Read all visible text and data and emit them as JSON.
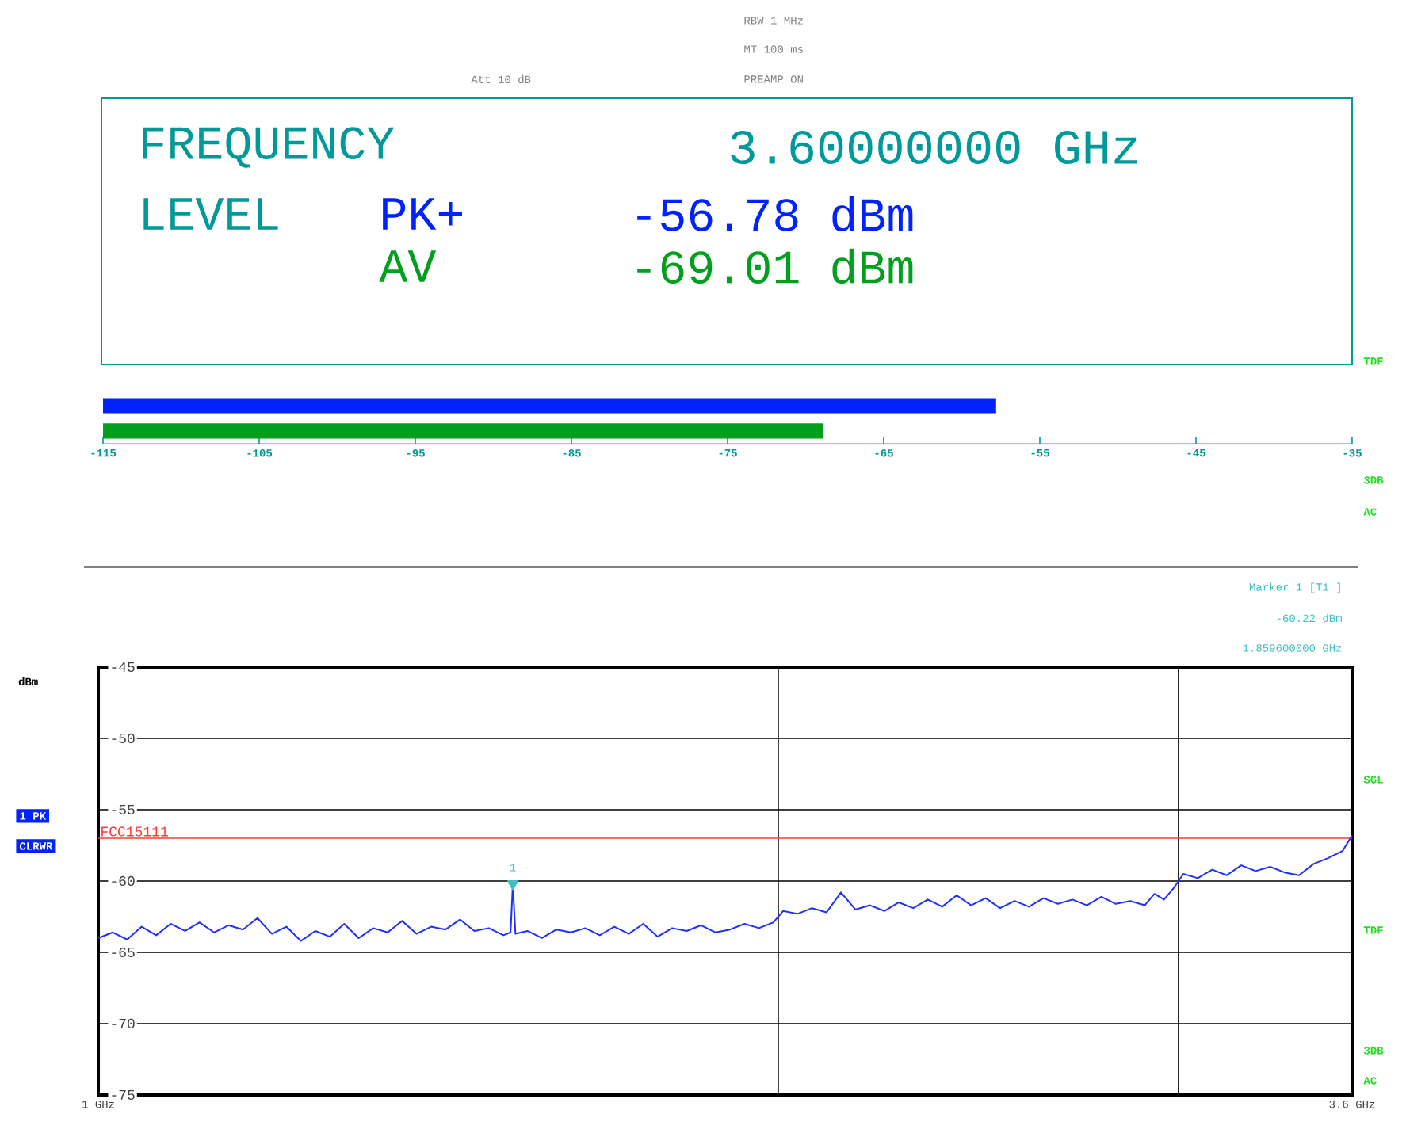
{
  "chart_data": [
    {
      "type": "bar",
      "orientation": "horizontal",
      "categories": [
        null,
        null
      ],
      "base": [
        -115,
        -115
      ],
      "values": [
        57.2,
        46.1
      ],
      "colors": [
        "#0022ff",
        "#00a01e"
      ],
      "xlim": [
        -115,
        -35
      ],
      "xticks": [
        -115,
        -105,
        -95,
        -85,
        -75,
        -65,
        -55,
        -45,
        -35
      ],
      "annotations": [
        "Att 10 dB",
        "RBW 1 MHz",
        "MT 100 ms",
        "PREAMP ON",
        "FREQUENCY",
        "3.60000000 GHz",
        "LEVEL",
        "PK+",
        "-56.78 dBm",
        "AV",
        "-69.01 dBm",
        "TDF",
        "3DB",
        "AC"
      ]
    },
    {
      "type": "line",
      "ylabel": "dBm",
      "xlim": [
        1,
        3.6
      ],
      "xticks": [
        {
          "value": 1,
          "label": "1 GHz"
        },
        {
          "value": 3.6,
          "label": "3.6 GHz"
        }
      ],
      "ylim": [
        -75,
        -45
      ],
      "yticks": [
        -45,
        -50,
        -55,
        -60,
        -65,
        -70,
        -75
      ],
      "grid": "y",
      "x": [
        1.0,
        1.03,
        1.06,
        1.09,
        1.12,
        1.15,
        1.18,
        1.21,
        1.24,
        1.27,
        1.3,
        1.33,
        1.36,
        1.39,
        1.42,
        1.45,
        1.48,
        1.51,
        1.54,
        1.57,
        1.6,
        1.63,
        1.66,
        1.69,
        1.72,
        1.75,
        1.78,
        1.81,
        1.84,
        1.855,
        1.8596,
        1.865,
        1.89,
        1.92,
        1.95,
        1.98,
        2.01,
        2.04,
        2.07,
        2.1,
        2.13,
        2.16,
        2.19,
        2.22,
        2.25,
        2.28,
        2.31,
        2.34,
        2.37,
        2.4,
        2.42,
        2.45,
        2.48,
        2.51,
        2.54,
        2.57,
        2.6,
        2.63,
        2.66,
        2.69,
        2.72,
        2.75,
        2.78,
        2.81,
        2.84,
        2.87,
        2.9,
        2.93,
        2.96,
        2.99,
        3.02,
        3.05,
        3.08,
        3.11,
        3.14,
        3.17,
        3.19,
        3.21,
        3.23,
        3.25,
        3.28,
        3.31,
        3.34,
        3.37,
        3.4,
        3.43,
        3.46,
        3.49,
        3.52,
        3.55,
        3.58,
        3.6
      ],
      "series": [
        {
          "color": "#1f2fff",
          "values": [
            -64.0,
            -63.6,
            -64.1,
            -63.2,
            -63.8,
            -63.0,
            -63.5,
            -62.9,
            -63.6,
            -63.1,
            -63.4,
            -62.6,
            -63.7,
            -63.2,
            -64.2,
            -63.5,
            -63.9,
            -63.0,
            -64.0,
            -63.3,
            -63.6,
            -62.8,
            -63.7,
            -63.2,
            -63.4,
            -62.7,
            -63.5,
            -63.3,
            -63.8,
            -63.6,
            -60.2,
            -63.7,
            -63.5,
            -64.0,
            -63.4,
            -63.6,
            -63.3,
            -63.8,
            -63.2,
            -63.7,
            -63.0,
            -63.9,
            -63.3,
            -63.5,
            -63.1,
            -63.6,
            -63.4,
            -63.0,
            -63.3,
            -62.9,
            -62.1,
            -62.3,
            -61.9,
            -62.2,
            -60.8,
            -62.0,
            -61.7,
            -62.1,
            -61.5,
            -61.9,
            -61.3,
            -61.8,
            -61.0,
            -61.7,
            -61.2,
            -61.9,
            -61.4,
            -61.8,
            -61.2,
            -61.6,
            -61.3,
            -61.7,
            -61.1,
            -61.6,
            -61.4,
            -61.7,
            -60.9,
            -61.3,
            -60.5,
            -59.5,
            -59.8,
            -59.2,
            -59.6,
            -58.9,
            -59.3,
            -59.0,
            -59.4,
            -59.6,
            -58.8,
            -58.4,
            -57.9,
            -56.8
          ]
        },
        {
          "type": "scatter",
          "marker": "triangle",
          "color": "#3fbfbf",
          "x": [
            1.8596
          ],
          "values": [
            -60.2
          ]
        }
      ],
      "ref_lines": [
        {
          "axis": "x",
          "value": 2.41,
          "color": "#000000"
        },
        {
          "axis": "x",
          "value": 3.24,
          "color": "#000000"
        },
        {
          "axis": "y",
          "value": -57,
          "label": "FCC15111",
          "color": "#ff3b3b"
        }
      ],
      "annotations": [
        {
          "text": "1",
          "x": 1.8596,
          "y": -60.22
        },
        "Marker 1 [T1 ]",
        "-60.22 dBm",
        "1.859600000 GHz",
        "1 PK",
        "CLRWR",
        "SGL",
        "TDF",
        "3DB",
        "AC"
      ]
    }
  ]
}
